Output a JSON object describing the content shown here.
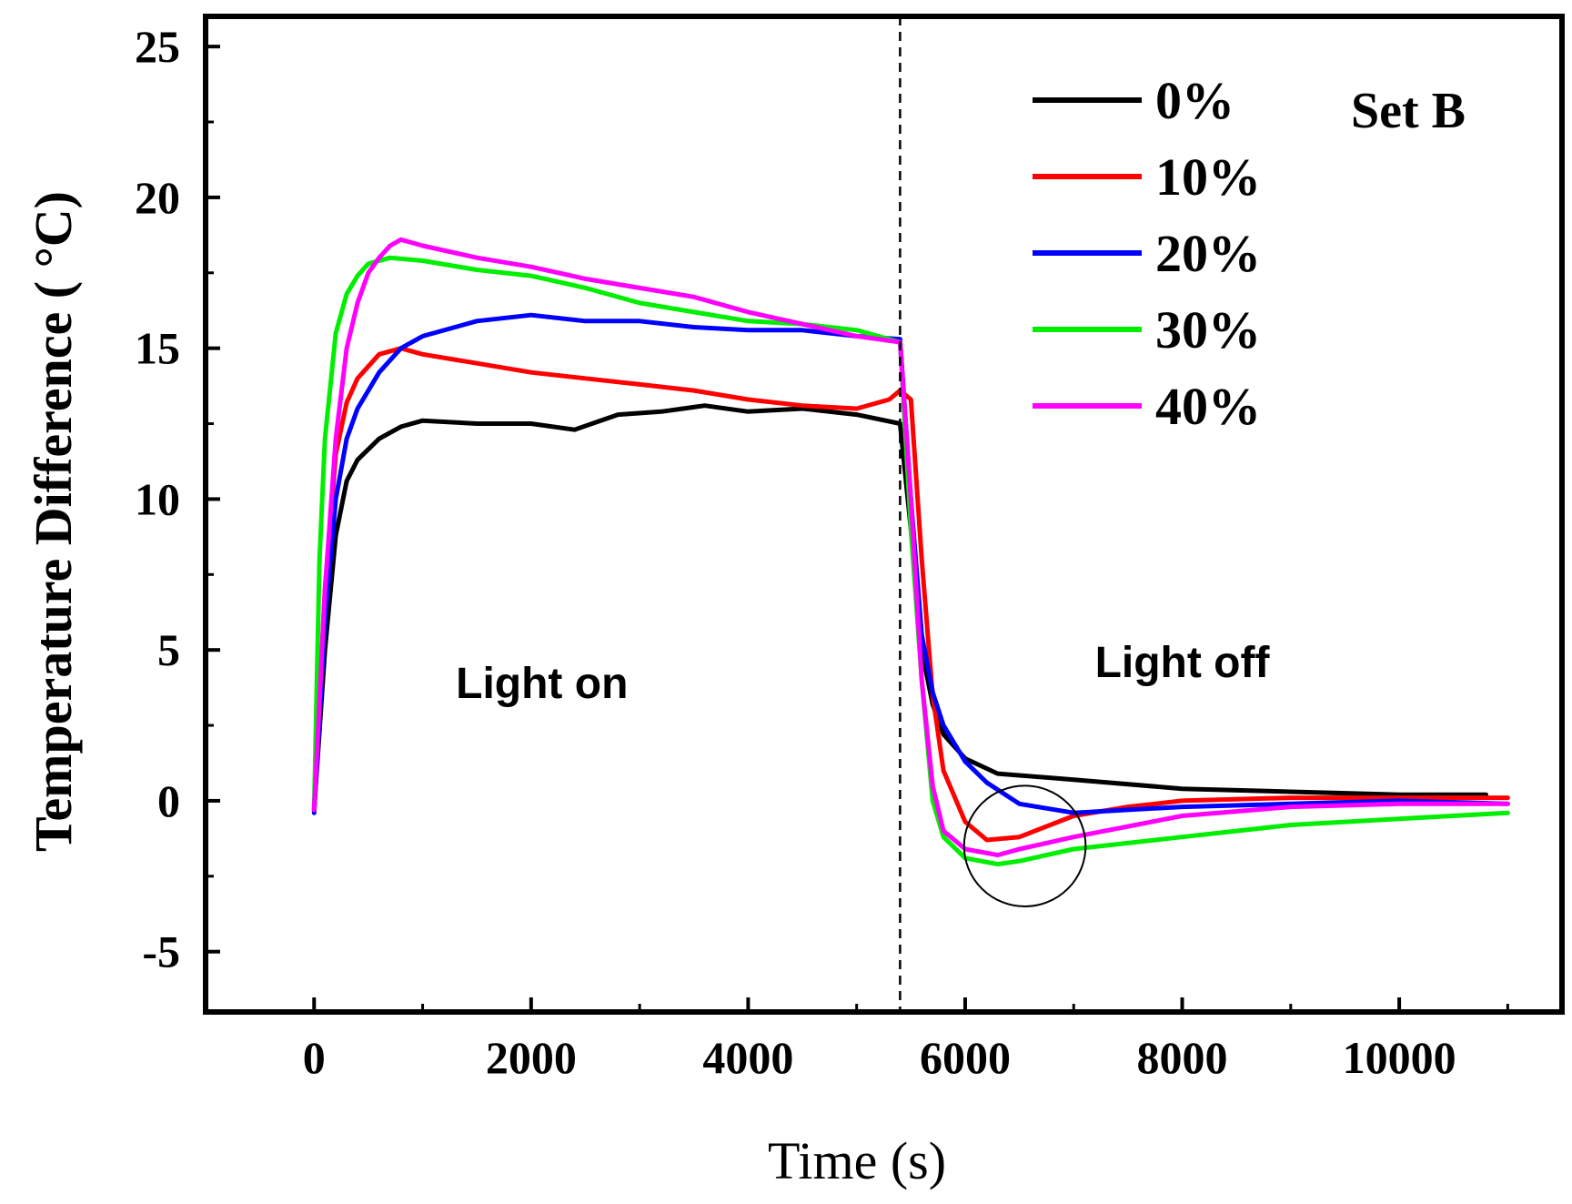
{
  "chart_data": {
    "type": "line",
    "title": "",
    "xlabel": "Time (s)",
    "ylabel": "Temperature Difference ( °C)",
    "xlim": [
      -1000,
      11500
    ],
    "ylim": [
      -7,
      26
    ],
    "x_ticks": [
      0,
      2000,
      4000,
      6000,
      8000,
      10000
    ],
    "x_tick_labels": [
      "0",
      "2000",
      "4000",
      "6000",
      "8000",
      "10000"
    ],
    "y_ticks": [
      -5,
      0,
      5,
      10,
      15,
      20,
      25
    ],
    "y_tick_labels": [
      "-5",
      "0",
      "5",
      "10",
      "15",
      "20",
      "25"
    ],
    "grid": false,
    "legend_position": "top-right",
    "set_label": "Set B",
    "annotations": [
      {
        "text": "Light on",
        "x": 2100,
        "y": 3.4
      },
      {
        "text": "Light off",
        "x": 8000,
        "y": 4.1
      }
    ],
    "light_switch_time": 5400,
    "highlight_circle": {
      "cx": 6550,
      "cy": -1.5,
      "rx": 560,
      "ry": 2.0
    },
    "series": [
      {
        "name": "0%",
        "color": "#000000",
        "x": [
          0,
          100,
          200,
          300,
          400,
          600,
          800,
          1000,
          1500,
          2000,
          2400,
          2800,
          3200,
          3600,
          4000,
          4500,
          5000,
          5400,
          5500,
          5600,
          5700,
          5800,
          6000,
          6300,
          7000,
          8000,
          9000,
          10000,
          10800
        ],
        "y": [
          -0.3,
          5,
          8.8,
          10.6,
          11.3,
          12,
          12.4,
          12.6,
          12.5,
          12.5,
          12.3,
          12.8,
          12.9,
          13.1,
          12.9,
          13,
          12.8,
          12.5,
          9,
          5,
          3.2,
          2.2,
          1.4,
          0.9,
          0.7,
          0.4,
          0.3,
          0.2,
          0.2
        ]
      },
      {
        "name": "10%",
        "color": "#ff0000",
        "x": [
          0,
          100,
          200,
          300,
          400,
          600,
          800,
          1000,
          1500,
          2000,
          2500,
          3000,
          3500,
          4000,
          4500,
          5000,
          5300,
          5400,
          5500,
          5600,
          5700,
          5800,
          6000,
          6200,
          6500,
          7000,
          7500,
          8000,
          9000,
          10000,
          11000
        ],
        "y": [
          -0.3,
          7,
          11.5,
          13.2,
          14,
          14.8,
          15,
          14.8,
          14.5,
          14.2,
          14,
          13.8,
          13.6,
          13.3,
          13.1,
          13,
          13.3,
          13.6,
          13.3,
          8,
          3.5,
          1,
          -0.7,
          -1.3,
          -1.2,
          -0.5,
          -0.2,
          0,
          0.1,
          0.1,
          0.1
        ]
      },
      {
        "name": "20%",
        "color": "#0000ff",
        "x": [
          0,
          100,
          200,
          300,
          400,
          600,
          800,
          1000,
          1500,
          2000,
          2500,
          3000,
          3500,
          4000,
          4500,
          5000,
          5400,
          5500,
          5600,
          5700,
          5800,
          6000,
          6200,
          6500,
          7000,
          8000,
          9000,
          10000,
          11000
        ],
        "y": [
          -0.4,
          6,
          10,
          12,
          13,
          14.2,
          15,
          15.4,
          15.9,
          16.1,
          15.9,
          15.9,
          15.7,
          15.6,
          15.6,
          15.4,
          15.3,
          10,
          5.5,
          3.6,
          2.5,
          1.3,
          0.6,
          -0.1,
          -0.4,
          -0.2,
          -0.1,
          0,
          -0.1
        ]
      },
      {
        "name": "30%",
        "color": "#00ee00",
        "x": [
          0,
          50,
          100,
          200,
          300,
          400,
          500,
          700,
          1000,
          1500,
          2000,
          2500,
          3000,
          3500,
          4000,
          4500,
          5000,
          5400,
          5500,
          5600,
          5700,
          5800,
          6000,
          6300,
          6500,
          7000,
          8000,
          9000,
          10000,
          11000
        ],
        "y": [
          -0.3,
          8,
          12,
          15.5,
          16.8,
          17.4,
          17.8,
          18,
          17.9,
          17.6,
          17.4,
          17,
          16.5,
          16.2,
          15.9,
          15.8,
          15.6,
          15.2,
          9,
          4,
          0,
          -1.2,
          -1.9,
          -2.1,
          -2.0,
          -1.6,
          -1.2,
          -0.8,
          -0.6,
          -0.4
        ]
      },
      {
        "name": "40%",
        "color": "#ff00ff",
        "x": [
          0,
          100,
          200,
          300,
          400,
          500,
          600,
          700,
          800,
          900,
          1000,
          1500,
          2000,
          2500,
          3000,
          3500,
          4000,
          4500,
          5000,
          5400,
          5500,
          5600,
          5700,
          5800,
          6000,
          6300,
          6500,
          7000,
          8000,
          9000,
          10000,
          11000
        ],
        "y": [
          -0.3,
          7,
          12,
          15,
          16.5,
          17.5,
          18,
          18.4,
          18.6,
          18.5,
          18.4,
          18,
          17.7,
          17.3,
          17,
          16.7,
          16.2,
          15.8,
          15.4,
          15.2,
          10,
          4,
          0.5,
          -1.0,
          -1.6,
          -1.8,
          -1.6,
          -1.2,
          -0.5,
          -0.2,
          -0.1,
          -0.1
        ]
      }
    ]
  }
}
